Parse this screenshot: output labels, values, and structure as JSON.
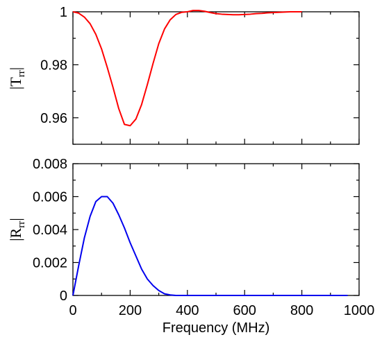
{
  "chart_data": [
    {
      "type": "line",
      "title": "",
      "xlabel": "",
      "ylabel_main": "|T",
      "ylabel_sub": "rr",
      "ylabel_end": "|",
      "xlim": [
        0,
        1000
      ],
      "ylim": [
        0.95,
        1.0
      ],
      "yticks": [
        0.96,
        0.98,
        1.0
      ],
      "ytick_labels": [
        "0.96",
        "0.98",
        "1"
      ],
      "xticks": [
        0,
        200,
        400,
        600,
        800,
        1000
      ],
      "grid": false,
      "color": "#ff0000",
      "series": [
        {
          "x": [
            0,
            20,
            40,
            60,
            80,
            100,
            120,
            140,
            160,
            180,
            200,
            220,
            240,
            260,
            280,
            300,
            320,
            340,
            360,
            380,
            400,
            420,
            440,
            460,
            480,
            500,
            520,
            540,
            560,
            580,
            600,
            620,
            640,
            660,
            680,
            700,
            720,
            740,
            760,
            780,
            800
          ],
          "values": [
            1.0,
            0.9995,
            0.998,
            0.9955,
            0.9915,
            0.986,
            0.979,
            0.9715,
            0.9635,
            0.9575,
            0.957,
            0.9595,
            0.965,
            0.9725,
            0.9805,
            0.988,
            0.9935,
            0.997,
            0.999,
            0.9998,
            1.0,
            1.0005,
            1.0005,
            1.0002,
            0.9997,
            0.9993,
            0.9991,
            0.999,
            0.9989,
            0.9989,
            0.999,
            0.9991,
            0.9993,
            0.9994,
            0.9996,
            0.9997,
            0.9998,
            0.9999,
            1.0,
            1.0,
            1.0
          ]
        }
      ]
    },
    {
      "type": "line",
      "title": "",
      "xlabel": "Frequency (MHz)",
      "ylabel_main": "|R",
      "ylabel_sub": "rr",
      "ylabel_end": "|",
      "xlim": [
        0,
        1000
      ],
      "ylim": [
        0,
        0.008
      ],
      "yticks": [
        0,
        0.002,
        0.004,
        0.006,
        0.008
      ],
      "ytick_labels": [
        "0",
        "0.002",
        "0.004",
        "0.006",
        "0.008"
      ],
      "xticks": [
        0,
        200,
        400,
        600,
        800,
        1000
      ],
      "xtick_labels": [
        "0",
        "200",
        "400",
        "600",
        "800",
        "1000"
      ],
      "grid": false,
      "color": "#0000ee",
      "series": [
        {
          "x": [
            0,
            20,
            40,
            60,
            80,
            100,
            120,
            140,
            160,
            180,
            200,
            220,
            240,
            260,
            280,
            300,
            320,
            340,
            360,
            380,
            960
          ],
          "values": [
            0,
            0.0018,
            0.0035,
            0.0048,
            0.0057,
            0.006,
            0.006,
            0.0056,
            0.0049,
            0.0041,
            0.0032,
            0.0024,
            0.0016,
            0.001,
            0.0006,
            0.0003,
            0.0001,
            3e-05,
            0,
            0,
            0
          ]
        }
      ]
    }
  ]
}
